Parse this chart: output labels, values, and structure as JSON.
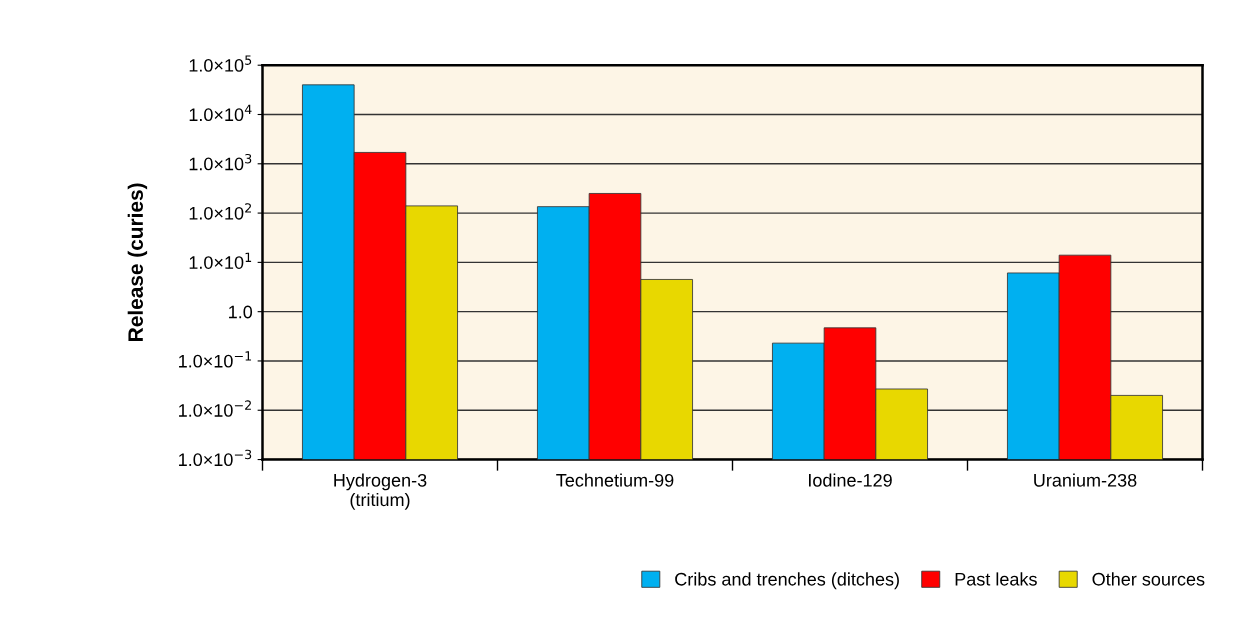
{
  "chart_data": {
    "type": "bar",
    "ylabel": "Release (curies)",
    "categories": [
      "Hydrogen-3\n(tritium)",
      "Technetium-99",
      "Iodine-129",
      "Uranium-238"
    ],
    "series": [
      {
        "name": "Cribs and trenches (ditches)",
        "color": "#00b0f0",
        "values": [
          40000,
          135,
          0.23,
          6.1
        ]
      },
      {
        "name": "Past leaks",
        "color": "#ff0000",
        "values": [
          1700,
          250,
          0.47,
          14
        ]
      },
      {
        "name": "Other sources",
        "color": "#e8d800",
        "values": [
          140,
          4.5,
          0.027,
          0.02
        ]
      }
    ],
    "log": "y",
    "ylim": [
      0.001,
      100000
    ],
    "yticks": [
      {
        "value": 0.001,
        "label": "1.0×10$^{−3}$"
      },
      {
        "value": 0.01,
        "label": "1.0×10$^{−2}$"
      },
      {
        "value": 0.1,
        "label": "1.0×10$^{−1}$"
      },
      {
        "value": 1,
        "label": "1.0"
      },
      {
        "value": 10,
        "label": "1.0×10$^{1}$"
      },
      {
        "value": 100,
        "label": "1.0×10$^{2}$"
      },
      {
        "value": 1000,
        "label": "1.0×10$^{3}$"
      },
      {
        "value": 10000,
        "label": "1.0×10$^{4}$"
      },
      {
        "value": 100000,
        "label": "1.0×10$^{5}$"
      }
    ],
    "grid": "y",
    "legend": "bottom right"
  }
}
